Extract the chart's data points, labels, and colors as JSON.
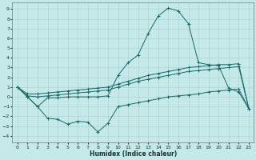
{
  "xlabel": "Humidex (Indice chaleur)",
  "bg_color": "#c5e8e8",
  "grid_color": "#aacece",
  "line_color": "#1a6868",
  "x_ticks": [
    0,
    1,
    2,
    3,
    4,
    5,
    6,
    7,
    8,
    9,
    10,
    11,
    12,
    13,
    14,
    15,
    16,
    17,
    18,
    19,
    20,
    21,
    22,
    23
  ],
  "y_ticks": [
    -4,
    -3,
    -2,
    -1,
    0,
    1,
    2,
    3,
    4,
    5,
    6,
    7,
    8,
    9
  ],
  "xlim": [
    -0.5,
    23.5
  ],
  "ylim": [
    -4.7,
    9.7
  ],
  "series": [
    {
      "x": [
        0,
        1,
        2,
        3,
        4,
        5,
        6,
        7,
        8,
        9,
        10,
        11,
        12,
        13,
        14,
        15,
        16,
        17,
        18,
        19,
        20,
        21,
        22,
        23
      ],
      "y": [
        1.0,
        0.0,
        -1.0,
        -2.2,
        -2.3,
        -2.8,
        -2.5,
        -2.6,
        -3.6,
        -2.7,
        -1.0,
        -0.8,
        -0.6,
        -0.4,
        -0.2,
        0.0,
        0.1,
        0.2,
        0.3,
        0.5,
        0.6,
        0.7,
        0.8,
        -1.2
      ]
    },
    {
      "x": [
        0,
        1,
        2,
        3,
        4,
        5,
        6,
        7,
        8,
        9,
        10,
        11,
        12,
        13,
        14,
        15,
        16,
        17,
        18,
        19,
        20,
        21,
        22,
        23
      ],
      "y": [
        1.0,
        0.0,
        -1.0,
        -0.1,
        -0.1,
        0.0,
        0.0,
        0.0,
        0.0,
        0.1,
        2.2,
        3.5,
        4.3,
        6.5,
        8.3,
        9.1,
        8.8,
        7.5,
        3.5,
        3.3,
        3.2,
        0.9,
        0.5,
        -1.2
      ]
    },
    {
      "x": [
        0,
        1,
        2,
        3,
        4,
        5,
        6,
        7,
        8,
        9,
        10,
        11,
        12,
        13,
        14,
        15,
        16,
        17,
        18,
        19,
        20,
        21,
        22,
        23
      ],
      "y": [
        1.0,
        0.3,
        0.3,
        0.4,
        0.5,
        0.6,
        0.7,
        0.8,
        0.9,
        1.0,
        1.3,
        1.6,
        1.9,
        2.2,
        2.4,
        2.6,
        2.8,
        3.0,
        3.1,
        3.2,
        3.3,
        3.3,
        3.4,
        -1.2
      ]
    },
    {
      "x": [
        0,
        1,
        2,
        3,
        4,
        5,
        6,
        7,
        8,
        9,
        10,
        11,
        12,
        13,
        14,
        15,
        16,
        17,
        18,
        19,
        20,
        21,
        22,
        23
      ],
      "y": [
        1.0,
        0.1,
        0.0,
        0.1,
        0.2,
        0.3,
        0.4,
        0.5,
        0.6,
        0.7,
        1.0,
        1.3,
        1.6,
        1.8,
        2.0,
        2.2,
        2.4,
        2.6,
        2.7,
        2.8,
        2.9,
        3.0,
        3.1,
        -1.2
      ]
    }
  ]
}
